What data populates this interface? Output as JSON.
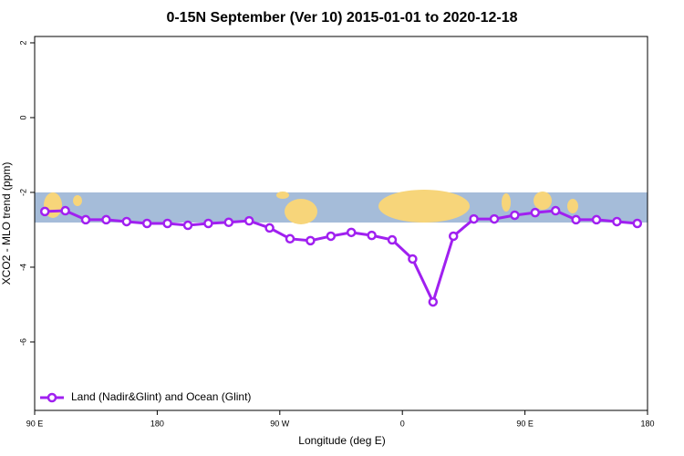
{
  "chart_data": {
    "type": "line",
    "title": "0-15N September (Ver 10)   2015-01-01 to 2020-12-18",
    "x_label": "Longitude (deg E)",
    "y_label": "XCO2 - MLO trend (ppm)",
    "x": [
      97.5,
      112.5,
      127.5,
      142.5,
      157.5,
      172.5,
      187.5,
      202.5,
      217.5,
      232.5,
      247.5,
      262.5,
      277.5,
      292.5,
      307.5,
      322.5,
      337.5,
      352.5,
      367.5,
      382.5,
      397.5,
      412.5,
      427.5,
      442.5,
      457.5,
      472.5,
      487.5,
      502.5,
      517.5,
      532.5
    ],
    "series": [
      {
        "name": "Land (Nadir&Glint) and Ocean (Glint)",
        "color": "#a020f0",
        "values": [
          -2.51,
          -2.49,
          -2.73,
          -2.73,
          -2.78,
          -2.83,
          -2.83,
          -2.88,
          -2.83,
          -2.8,
          -2.76,
          -2.95,
          -3.24,
          -3.29,
          -3.17,
          -3.07,
          -3.15,
          -3.27,
          -3.78,
          -4.93,
          -3.17,
          -2.71,
          -2.71,
          -2.61,
          -2.54,
          -2.49,
          -2.73,
          -2.73,
          -2.78,
          -2.83
        ]
      }
    ],
    "xlim": [
      90,
      540
    ],
    "xticks": [
      {
        "value": 90,
        "label": "90 E"
      },
      {
        "value": 180,
        "label": "180"
      },
      {
        "value": 270,
        "label": "90 W"
      },
      {
        "value": 360,
        "label": "0"
      },
      {
        "value": 450,
        "label": "90 E"
      },
      {
        "value": 540,
        "label": "180"
      }
    ],
    "ylim": [
      -7.83,
      2.17
    ],
    "yticks": [
      2,
      0,
      -2,
      -4,
      -6
    ],
    "legend": "bottom left"
  }
}
